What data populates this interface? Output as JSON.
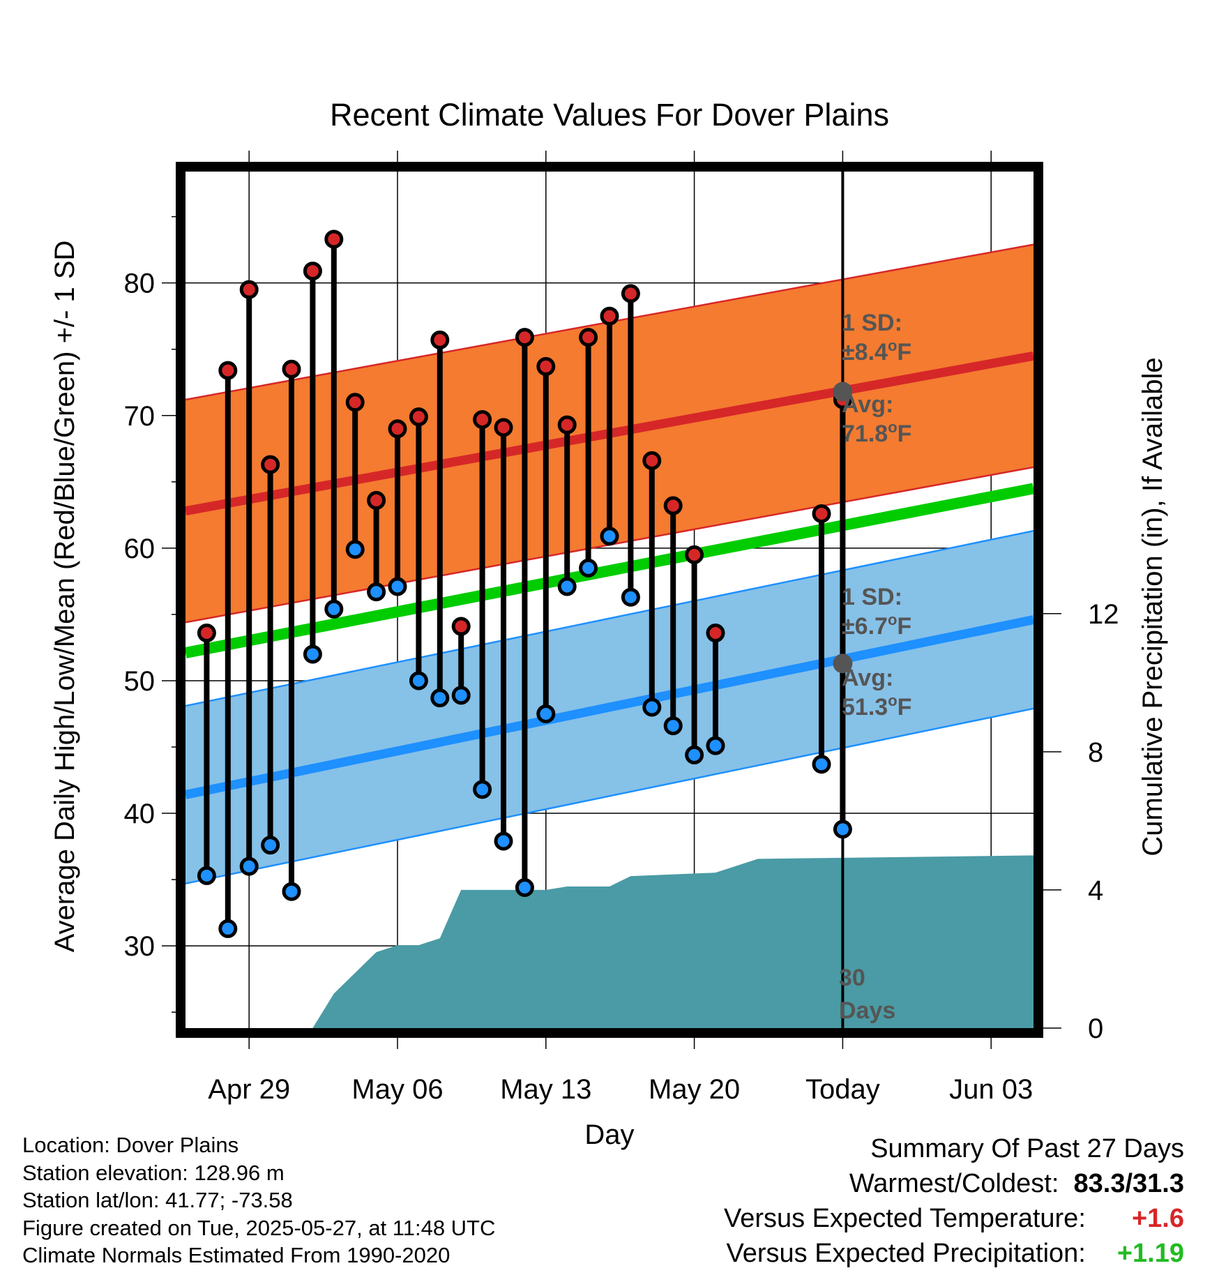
{
  "chart_data": {
    "type": "line",
    "title": "Recent Climate Values For Dover Plains",
    "xlabel": "Day",
    "ylabel": "Average Daily High/Low/Mean (Red/Blue/Green) +/- 1 SD",
    "y2label": "Cumulative Precipitation (in), If Available",
    "x_tick_labels": [
      "Apr 29",
      "May 06",
      "May 13",
      "May 20",
      "Today",
      "Jun 03"
    ],
    "y_ticks": [
      30,
      40,
      50,
      60,
      70,
      80
    ],
    "y2_ticks": [
      0,
      4,
      8,
      12
    ],
    "ylim": [
      23.8,
      88.4
    ],
    "y2lim": [
      0,
      24.8
    ],
    "colors": {
      "high": "#d62728",
      "low": "#1e90ff",
      "mean": "#00cc00",
      "high_band": "#f47b30",
      "low_band": "#86c1e8",
      "precip": "#4a9ba5"
    },
    "daily": [
      {
        "date": "2025-04-27",
        "high": 53.6,
        "low": 35.3
      },
      {
        "date": "2025-04-28",
        "high": 73.4,
        "low": 31.3
      },
      {
        "date": "2025-04-29",
        "high": 79.5,
        "low": 36.0
      },
      {
        "date": "2025-04-30",
        "high": 66.3,
        "low": 37.6
      },
      {
        "date": "2025-05-01",
        "high": 73.5,
        "low": 34.1
      },
      {
        "date": "2025-05-02",
        "high": 80.9,
        "low": 52.0
      },
      {
        "date": "2025-05-03",
        "high": 83.3,
        "low": 55.4
      },
      {
        "date": "2025-05-04",
        "high": 71.0,
        "low": 59.9
      },
      {
        "date": "2025-05-05",
        "high": 63.6,
        "low": 56.7
      },
      {
        "date": "2025-05-06",
        "high": 69.0,
        "low": 57.1
      },
      {
        "date": "2025-05-07",
        "high": 69.9,
        "low": 50.0
      },
      {
        "date": "2025-05-08",
        "high": 75.7,
        "low": 48.7
      },
      {
        "date": "2025-05-09",
        "high": 54.1,
        "low": 48.9
      },
      {
        "date": "2025-05-10",
        "high": 69.7,
        "low": 41.8
      },
      {
        "date": "2025-05-11",
        "high": 69.1,
        "low": 37.9
      },
      {
        "date": "2025-05-12",
        "high": 75.9,
        "low": 34.4
      },
      {
        "date": "2025-05-13",
        "high": 73.7,
        "low": 47.5
      },
      {
        "date": "2025-05-14",
        "high": 69.3,
        "low": 57.1
      },
      {
        "date": "2025-05-15",
        "high": 75.9,
        "low": 58.5
      },
      {
        "date": "2025-05-16",
        "high": 77.5,
        "low": 60.9
      },
      {
        "date": "2025-05-17",
        "high": 79.2,
        "low": 56.3
      },
      {
        "date": "2025-05-18",
        "high": 66.6,
        "low": 48.0
      },
      {
        "date": "2025-05-19",
        "high": 63.2,
        "low": 46.6
      },
      {
        "date": "2025-05-20",
        "high": 59.5,
        "low": 44.4
      },
      {
        "date": "2025-05-21",
        "high": 53.6,
        "low": 45.1
      },
      {
        "date": "2025-05-26",
        "high": 62.6,
        "low": 43.7
      },
      {
        "date": "2025-05-27",
        "high": 71.2,
        "low": 38.8
      }
    ],
    "normals": {
      "dates": [
        "2025-04-26",
        "2025-06-05"
      ],
      "high_mean": [
        62.8,
        74.5
      ],
      "high_sd": 8.4,
      "low_mean": [
        41.4,
        54.6
      ],
      "low_sd": 6.7,
      "mean": [
        52.1,
        64.5
      ]
    },
    "precip_cumulative": {
      "dates": [
        "2025-05-02",
        "2025-05-03",
        "2025-05-05",
        "2025-05-06",
        "2025-05-07",
        "2025-05-08",
        "2025-05-09",
        "2025-05-13",
        "2025-05-14",
        "2025-05-16",
        "2025-05-17",
        "2025-05-21",
        "2025-05-23",
        "2025-06-05"
      ],
      "values": [
        0.0,
        1.0,
        2.2,
        2.4,
        2.4,
        2.6,
        4.0,
        4.0,
        4.1,
        4.1,
        4.4,
        4.5,
        4.9,
        5.0
      ]
    },
    "annotations": {
      "high_sd": "1 SD:",
      "high_sd_value": "±8.4",
      "high_avg": "Avg:",
      "high_avg_value": "71.8",
      "low_sd": "1 SD:",
      "low_sd_value": "±6.7",
      "low_avg": "Avg:",
      "low_avg_value": "51.3",
      "degree_symbol": "o",
      "unit": "F",
      "days_number": "30",
      "days_word": "Days"
    }
  },
  "footer": {
    "location": "Location: Dover Plains",
    "elevation": "Station elevation: 128.96 m",
    "latlon": "Station lat/lon: 41.77; -73.58",
    "created": "Figure created on Tue, 2025-05-27, at 11:48 UTC",
    "normals": "Climate Normals Estimated From 1990-2020"
  },
  "summary": {
    "heading": "Summary Of Past 27 Days",
    "warm_cold_label": "Warmest/Coldest:",
    "warm_cold_value": "83.3/31.3",
    "temp_label": "Versus Expected Temperature:",
    "temp_value": "+1.6",
    "precip_label": "Versus Expected Precipitation:",
    "precip_value": "+1.19"
  }
}
